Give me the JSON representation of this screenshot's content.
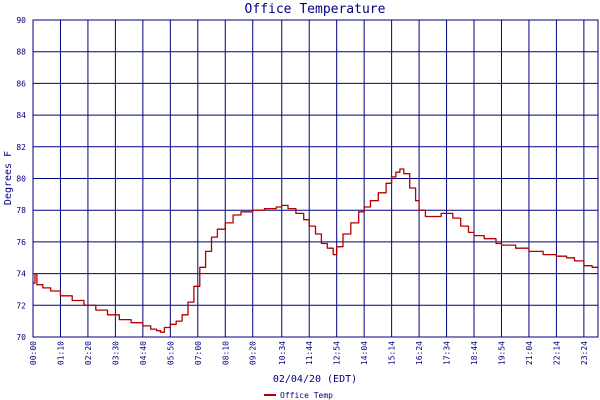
{
  "chart_data": {
    "type": "line",
    "title": "Office Temperature",
    "xlabel": "02/04/20 (EDT)",
    "ylabel": "Degrees F",
    "ylim": [
      70,
      90
    ],
    "yticks": [
      70,
      72,
      74,
      76,
      78,
      80,
      82,
      84,
      86,
      88,
      90
    ],
    "xlim": [
      "00:00",
      "24:00"
    ],
    "xticks": [
      "00:00",
      "01:10",
      "02:20",
      "03:30",
      "04:40",
      "05:50",
      "07:00",
      "08:10",
      "09:20",
      "10:34",
      "11:44",
      "12:54",
      "14:04",
      "15:14",
      "16:24",
      "17:34",
      "18:44",
      "19:54",
      "21:04",
      "22:14",
      "23:24"
    ],
    "grid": true,
    "legend_position": "bottom-center",
    "colors": {
      "grid": "#000080",
      "series": "#b00000",
      "text": "#000080"
    },
    "series": [
      {
        "name": "Office Temp",
        "points": [
          [
            "00:00",
            73.4
          ],
          [
            "00:05",
            74.0
          ],
          [
            "00:10",
            73.3
          ],
          [
            "00:25",
            73.1
          ],
          [
            "00:45",
            72.9
          ],
          [
            "01:10",
            72.6
          ],
          [
            "01:40",
            72.3
          ],
          [
            "02:10",
            72.0
          ],
          [
            "02:40",
            71.7
          ],
          [
            "03:10",
            71.4
          ],
          [
            "03:40",
            71.1
          ],
          [
            "04:10",
            70.9
          ],
          [
            "04:40",
            70.7
          ],
          [
            "05:00",
            70.5
          ],
          [
            "05:15",
            70.4
          ],
          [
            "05:25",
            70.3
          ],
          [
            "05:35",
            70.6
          ],
          [
            "05:50",
            70.8
          ],
          [
            "06:05",
            71.0
          ],
          [
            "06:20",
            71.4
          ],
          [
            "06:35",
            72.2
          ],
          [
            "06:50",
            73.2
          ],
          [
            "07:05",
            74.4
          ],
          [
            "07:20",
            75.4
          ],
          [
            "07:35",
            76.3
          ],
          [
            "07:50",
            76.8
          ],
          [
            "08:10",
            77.2
          ],
          [
            "08:30",
            77.7
          ],
          [
            "08:50",
            77.9
          ],
          [
            "09:20",
            78.0
          ],
          [
            "09:50",
            78.1
          ],
          [
            "10:20",
            78.2
          ],
          [
            "10:34",
            78.3
          ],
          [
            "10:50",
            78.1
          ],
          [
            "11:10",
            77.8
          ],
          [
            "11:30",
            77.4
          ],
          [
            "11:44",
            77.0
          ],
          [
            "12:00",
            76.5
          ],
          [
            "12:15",
            75.9
          ],
          [
            "12:30",
            75.6
          ],
          [
            "12:45",
            75.2
          ],
          [
            "12:54",
            75.7
          ],
          [
            "13:10",
            76.5
          ],
          [
            "13:30",
            77.2
          ],
          [
            "13:50",
            77.9
          ],
          [
            "14:04",
            78.2
          ],
          [
            "14:20",
            78.6
          ],
          [
            "14:40",
            79.1
          ],
          [
            "15:00",
            79.7
          ],
          [
            "15:14",
            80.1
          ],
          [
            "15:25",
            80.4
          ],
          [
            "15:35",
            80.6
          ],
          [
            "15:45",
            80.3
          ],
          [
            "16:00",
            79.4
          ],
          [
            "16:15",
            78.6
          ],
          [
            "16:24",
            78.0
          ],
          [
            "16:40",
            77.6
          ],
          [
            "17:00",
            77.6
          ],
          [
            "17:20",
            77.8
          ],
          [
            "17:34",
            77.8
          ],
          [
            "17:50",
            77.5
          ],
          [
            "18:10",
            77.0
          ],
          [
            "18:30",
            76.6
          ],
          [
            "18:44",
            76.4
          ],
          [
            "19:10",
            76.2
          ],
          [
            "19:40",
            75.9
          ],
          [
            "19:54",
            75.8
          ],
          [
            "20:30",
            75.6
          ],
          [
            "21:04",
            75.4
          ],
          [
            "21:40",
            75.2
          ],
          [
            "22:14",
            75.1
          ],
          [
            "22:40",
            75.0
          ],
          [
            "23:00",
            74.8
          ],
          [
            "23:24",
            74.5
          ],
          [
            "23:45",
            74.4
          ],
          [
            "24:00",
            74.4
          ]
        ]
      }
    ]
  }
}
